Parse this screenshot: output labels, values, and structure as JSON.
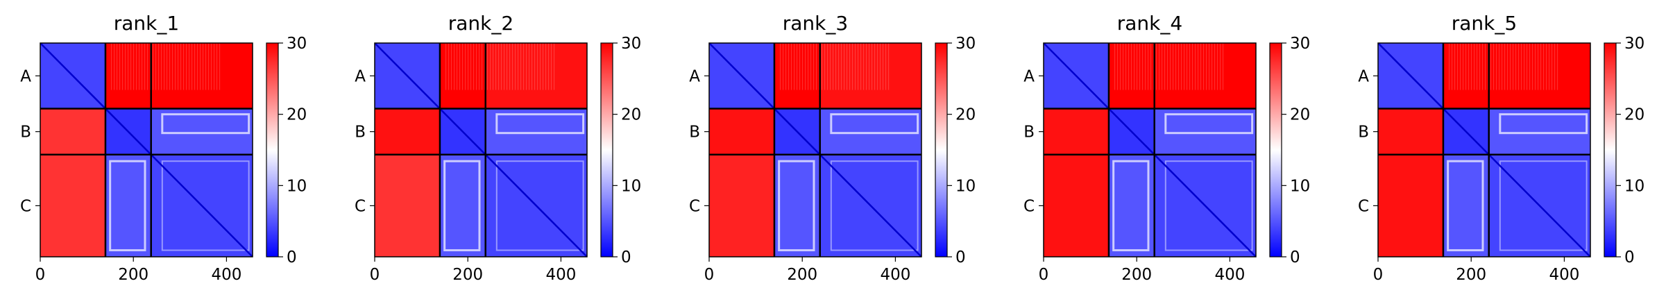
{
  "chart_data": [
    {
      "type": "heatmap",
      "title": "rank_1",
      "xticks": [
        0,
        200,
        400
      ],
      "xlim": [
        0,
        456
      ],
      "chain_labels": [
        "A",
        "B",
        "C"
      ],
      "chain_boundaries": [
        140,
        238
      ],
      "colorbar": {
        "range": [
          0,
          30
        ],
        "ticks": [
          0,
          10,
          20,
          30
        ],
        "colormap": [
          "#0000ff",
          "#ffffff",
          "#ff0000"
        ]
      },
      "block_means": [
        [
          4,
          30,
          30
        ],
        [
          27,
          3,
          5
        ],
        [
          27,
          5,
          4
        ]
      ]
    },
    {
      "type": "heatmap",
      "title": "rank_2",
      "xticks": [
        0,
        200,
        400
      ],
      "xlim": [
        0,
        456
      ],
      "chain_labels": [
        "A",
        "B",
        "C"
      ],
      "chain_boundaries": [
        140,
        238
      ],
      "colorbar": {
        "range": [
          0,
          30
        ],
        "ticks": [
          0,
          10,
          20,
          30
        ],
        "colormap": [
          "#0000ff",
          "#ffffff",
          "#ff0000"
        ]
      },
      "block_means": [
        [
          4,
          30,
          29
        ],
        [
          29,
          3,
          5
        ],
        [
          27,
          5,
          4
        ]
      ]
    },
    {
      "type": "heatmap",
      "title": "rank_3",
      "xticks": [
        0,
        200,
        400
      ],
      "xlim": [
        0,
        456
      ],
      "chain_labels": [
        "A",
        "B",
        "C"
      ],
      "chain_boundaries": [
        140,
        238
      ],
      "colorbar": {
        "range": [
          0,
          30
        ],
        "ticks": [
          0,
          10,
          20,
          30
        ],
        "colormap": [
          "#0000ff",
          "#ffffff",
          "#ff0000"
        ]
      },
      "block_means": [
        [
          4,
          30,
          29
        ],
        [
          29,
          3,
          5
        ],
        [
          28,
          5,
          4
        ]
      ]
    },
    {
      "type": "heatmap",
      "title": "rank_4",
      "xticks": [
        0,
        200,
        400
      ],
      "xlim": [
        0,
        456
      ],
      "chain_labels": [
        "A",
        "B",
        "C"
      ],
      "chain_boundaries": [
        140,
        238
      ],
      "colorbar": {
        "range": [
          0,
          30
        ],
        "ticks": [
          0,
          10,
          20,
          30
        ],
        "colormap": [
          "#0000ff",
          "#ffffff",
          "#ff0000"
        ]
      },
      "block_means": [
        [
          4,
          30,
          30
        ],
        [
          29,
          3,
          5
        ],
        [
          29,
          5,
          4
        ]
      ]
    },
    {
      "type": "heatmap",
      "title": "rank_5",
      "xticks": [
        0,
        200,
        400
      ],
      "xlim": [
        0,
        456
      ],
      "chain_labels": [
        "A",
        "B",
        "C"
      ],
      "chain_boundaries": [
        140,
        238
      ],
      "colorbar": {
        "range": [
          0,
          30
        ],
        "ticks": [
          0,
          10,
          20,
          30
        ],
        "colormap": [
          "#0000ff",
          "#ffffff",
          "#ff0000"
        ]
      },
      "block_means": [
        [
          4,
          30,
          30
        ],
        [
          29,
          3,
          5
        ],
        [
          29,
          5,
          4
        ]
      ]
    }
  ]
}
